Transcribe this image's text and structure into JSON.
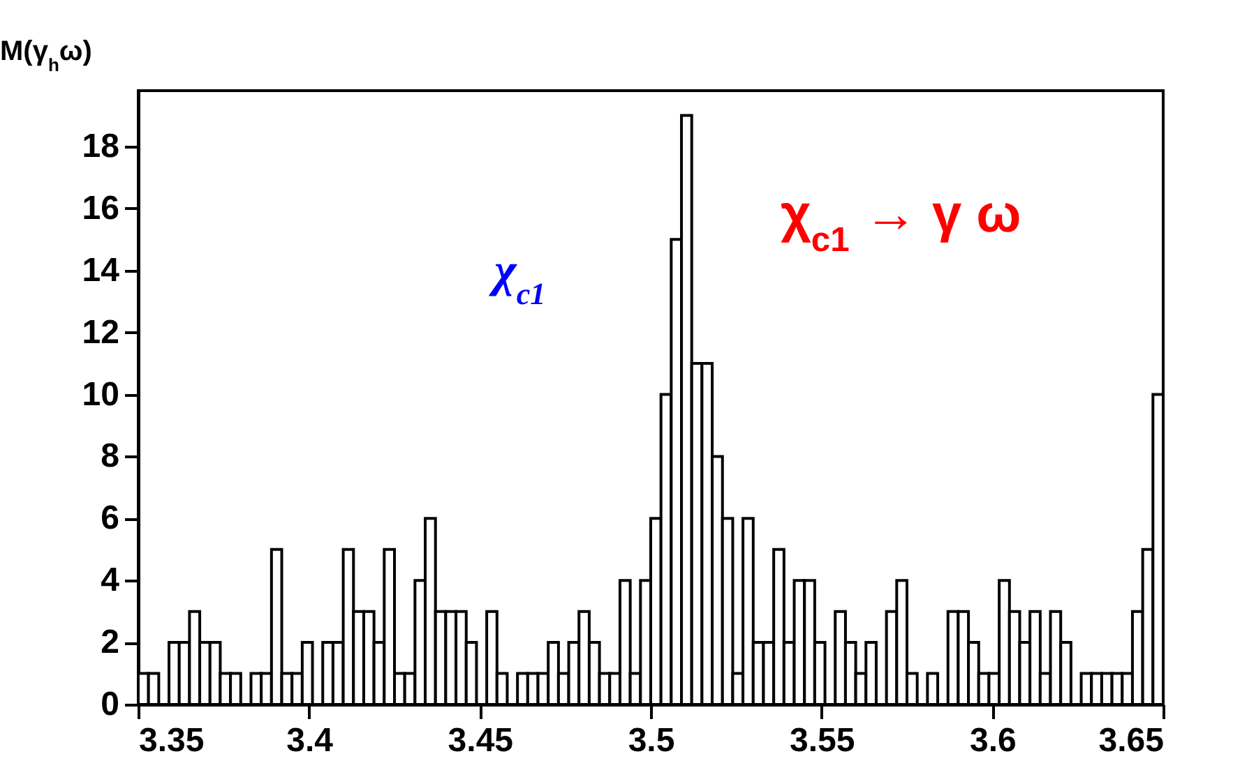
{
  "chart_data": {
    "type": "histogram",
    "title": "M(γ$_{h}$ω)",
    "annotations": [
      "χ$_{c1}$",
      "χ$_{c1}$ → γ ω"
    ],
    "bins": [
      3.35,
      3.353,
      3.356,
      3.359,
      3.362,
      3.365,
      3.368,
      3.371,
      3.374,
      3.377,
      3.38,
      3.383,
      3.386,
      3.389,
      3.392,
      3.395,
      3.398,
      3.401,
      3.404,
      3.407,
      3.41,
      3.413,
      3.416,
      3.419,
      3.422,
      3.425,
      3.428,
      3.431,
      3.434,
      3.437,
      3.44,
      3.443,
      3.446,
      3.449,
      3.452,
      3.455,
      3.458,
      3.461,
      3.464,
      3.467,
      3.47,
      3.473,
      3.476,
      3.479,
      3.482,
      3.485,
      3.488,
      3.491,
      3.494,
      3.497,
      3.5,
      3.503,
      3.506,
      3.509,
      3.512,
      3.515,
      3.518,
      3.521,
      3.524,
      3.527,
      3.53,
      3.533,
      3.536,
      3.539,
      3.542,
      3.545,
      3.548,
      3.551,
      3.554,
      3.557,
      3.56,
      3.563,
      3.566,
      3.569,
      3.572,
      3.575,
      3.578,
      3.581,
      3.584,
      3.587,
      3.59,
      3.593,
      3.596,
      3.599,
      3.602,
      3.605,
      3.608,
      3.611,
      3.614,
      3.617,
      3.62,
      3.623,
      3.626,
      3.629,
      3.632,
      3.635,
      3.638,
      3.641,
      3.644,
      3.647,
      3.65
    ],
    "values": [
      1,
      1,
      0,
      2,
      2,
      3,
      2,
      2,
      1,
      1,
      0,
      1,
      1,
      5,
      1,
      1,
      2,
      0,
      2,
      2,
      5,
      3,
      3,
      2,
      5,
      1,
      1,
      4,
      6,
      3,
      3,
      3,
      2,
      0,
      3,
      1,
      0,
      1,
      1,
      1,
      2,
      1,
      2,
      3,
      2,
      1,
      1,
      4,
      1,
      4,
      6,
      10,
      15,
      19,
      11,
      11,
      8,
      6,
      1,
      6,
      2,
      2,
      5,
      2,
      4,
      4,
      2,
      0,
      3,
      2,
      1,
      2,
      0,
      3,
      4,
      1,
      0,
      1,
      0,
      3,
      3,
      2,
      1,
      1,
      4,
      3,
      2,
      3,
      1,
      3,
      2,
      0,
      1,
      1,
      1,
      1,
      1,
      3,
      5,
      10
    ],
    "color": "#000000",
    "xlim": [
      3.35,
      3.65
    ],
    "xticks": [
      3.35,
      3.4,
      3.45,
      3.5,
      3.55,
      3.6,
      3.65
    ],
    "ylim": [
      0,
      19.8
    ],
    "yticks": [
      0,
      2,
      4,
      6,
      8,
      10,
      12,
      14,
      16,
      18
    ]
  }
}
